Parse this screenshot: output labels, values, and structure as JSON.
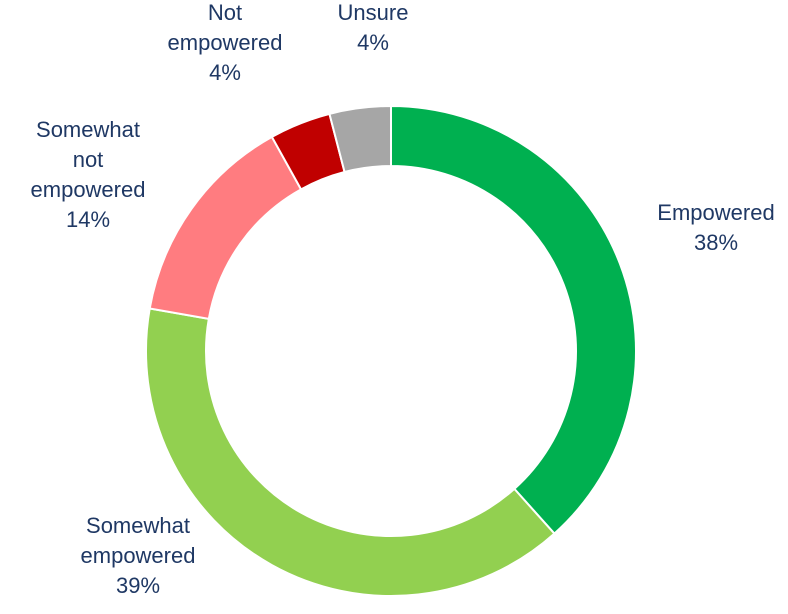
{
  "chart_data": {
    "type": "pie",
    "variant": "donut",
    "start_angle_deg": 0,
    "direction": "clockwise",
    "slices": [
      {
        "label_lines": [
          "Empowered",
          "38%"
        ],
        "value": 38,
        "color": "#00b050"
      },
      {
        "label_lines": [
          "Somewhat",
          "empowered",
          "39%"
        ],
        "value": 39,
        "color": "#92d050"
      },
      {
        "label_lines": [
          "Somewhat",
          "not",
          "empowered",
          "14%"
        ],
        "value": 14,
        "color": "#ff7c80"
      },
      {
        "label_lines": [
          "Not",
          "empowered",
          "4%"
        ],
        "value": 4,
        "color": "#c00000"
      },
      {
        "label_lines": [
          "Unsure",
          "4%"
        ],
        "value": 4,
        "color": "#a6a6a6"
      }
    ],
    "label_color": "#1f3864",
    "legend": "none",
    "title": ""
  }
}
